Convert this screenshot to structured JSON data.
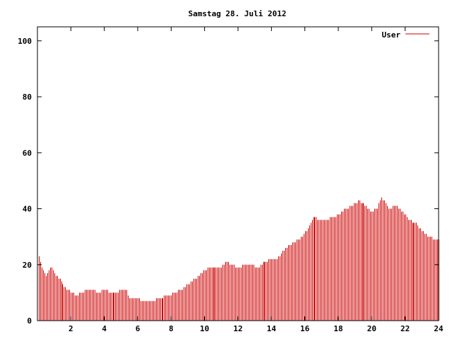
{
  "chart_data": {
    "type": "bar",
    "title": "Samstag 28. Juli 2012",
    "xlabel": "",
    "ylabel": "",
    "xlim": [
      0,
      24
    ],
    "ylim": [
      0,
      105
    ],
    "xticks": [
      2,
      4,
      6,
      8,
      10,
      12,
      14,
      16,
      18,
      20,
      22,
      24
    ],
    "yticks": [
      0,
      20,
      40,
      60,
      80,
      100
    ],
    "grid": false,
    "legend": "top-right",
    "series_color": "#cc0000",
    "series": [
      {
        "name": "User",
        "anchors": [
          [
            0.0,
            25
          ],
          [
            0.2,
            20
          ],
          [
            0.5,
            16
          ],
          [
            0.8,
            19
          ],
          [
            1.0,
            17
          ],
          [
            1.3,
            15
          ],
          [
            1.6,
            12
          ],
          [
            1.8,
            11
          ],
          [
            2.1,
            10
          ],
          [
            2.3,
            9
          ],
          [
            2.6,
            10
          ],
          [
            3.0,
            11
          ],
          [
            3.3,
            11
          ],
          [
            3.6,
            10
          ],
          [
            4.0,
            11
          ],
          [
            4.4,
            10
          ],
          [
            4.8,
            10
          ],
          [
            5.0,
            11
          ],
          [
            5.3,
            11
          ],
          [
            5.5,
            8
          ],
          [
            6.0,
            8
          ],
          [
            6.3,
            7
          ],
          [
            6.8,
            7
          ],
          [
            7.2,
            8
          ],
          [
            7.8,
            9
          ],
          [
            8.2,
            10
          ],
          [
            8.6,
            11
          ],
          [
            9.0,
            13
          ],
          [
            9.4,
            15
          ],
          [
            9.8,
            17
          ],
          [
            10.2,
            19
          ],
          [
            10.6,
            19
          ],
          [
            11.0,
            19
          ],
          [
            11.3,
            21
          ],
          [
            11.6,
            20
          ],
          [
            12.0,
            19
          ],
          [
            12.4,
            20
          ],
          [
            12.8,
            20
          ],
          [
            13.2,
            19
          ],
          [
            13.6,
            21
          ],
          [
            14.0,
            22
          ],
          [
            14.3,
            22
          ],
          [
            14.6,
            24
          ],
          [
            15.0,
            27
          ],
          [
            15.4,
            28
          ],
          [
            15.8,
            30
          ],
          [
            16.2,
            33
          ],
          [
            16.5,
            37
          ],
          [
            16.9,
            36
          ],
          [
            17.3,
            36
          ],
          [
            17.7,
            37
          ],
          [
            18.0,
            38
          ],
          [
            18.4,
            40
          ],
          [
            18.8,
            41
          ],
          [
            19.2,
            43
          ],
          [
            19.6,
            41
          ],
          [
            20.0,
            39
          ],
          [
            20.3,
            40
          ],
          [
            20.6,
            44
          ],
          [
            21.0,
            40
          ],
          [
            21.4,
            41
          ],
          [
            21.8,
            39
          ],
          [
            22.2,
            36
          ],
          [
            22.6,
            35
          ],
          [
            23.0,
            32
          ],
          [
            23.4,
            30
          ],
          [
            23.8,
            29
          ],
          [
            24.0,
            29
          ]
        ]
      }
    ]
  }
}
